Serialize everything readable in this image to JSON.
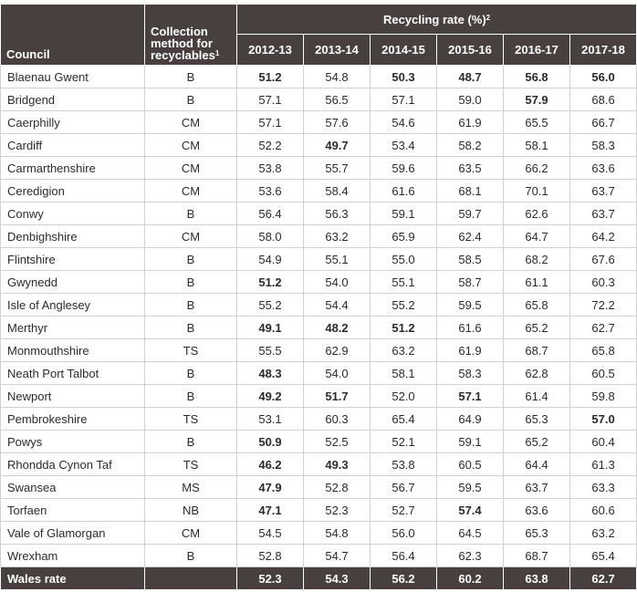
{
  "header": {
    "council": "Council",
    "method_lines": [
      "Collection",
      "method for",
      "recyclables"
    ],
    "method_footnote": "1",
    "rate_title": "Recycling rate (%)",
    "rate_footnote": "2",
    "years": [
      "2012-13",
      "2013-14",
      "2014-15",
      "2015-16",
      "2016-17",
      "2017-18"
    ]
  },
  "rows": [
    {
      "council": "Blaenau Gwent",
      "method": "B",
      "rates": [
        {
          "v": "51.2",
          "bold": true
        },
        {
          "v": "54.8",
          "bold": false
        },
        {
          "v": "50.3",
          "bold": true
        },
        {
          "v": "48.7",
          "bold": true
        },
        {
          "v": "56.8",
          "bold": true
        },
        {
          "v": "56.0",
          "bold": true
        }
      ]
    },
    {
      "council": "Bridgend",
      "method": "B",
      "rates": [
        {
          "v": "57.1",
          "bold": false
        },
        {
          "v": "56.5",
          "bold": false
        },
        {
          "v": "57.1",
          "bold": false
        },
        {
          "v": "59.0",
          "bold": false
        },
        {
          "v": "57.9",
          "bold": true
        },
        {
          "v": "68.6",
          "bold": false
        }
      ]
    },
    {
      "council": "Caerphilly",
      "method": "CM",
      "rates": [
        {
          "v": "57.1",
          "bold": false
        },
        {
          "v": "57.6",
          "bold": false
        },
        {
          "v": "54.6",
          "bold": false
        },
        {
          "v": "61.9",
          "bold": false
        },
        {
          "v": "65.5",
          "bold": false
        },
        {
          "v": "66.7",
          "bold": false
        }
      ]
    },
    {
      "council": "Cardiff",
      "method": "CM",
      "rates": [
        {
          "v": "52.2",
          "bold": false
        },
        {
          "v": "49.7",
          "bold": true
        },
        {
          "v": "53.4",
          "bold": false
        },
        {
          "v": "58.2",
          "bold": false
        },
        {
          "v": "58.1",
          "bold": false
        },
        {
          "v": "58.3",
          "bold": false
        }
      ]
    },
    {
      "council": "Carmarthenshire",
      "method": "CM",
      "rates": [
        {
          "v": "53.8",
          "bold": false
        },
        {
          "v": "55.7",
          "bold": false
        },
        {
          "v": "59.6",
          "bold": false
        },
        {
          "v": "63.5",
          "bold": false
        },
        {
          "v": "66.2",
          "bold": false
        },
        {
          "v": "63.6",
          "bold": false
        }
      ]
    },
    {
      "council": "Ceredigion",
      "method": "CM",
      "rates": [
        {
          "v": "53.6",
          "bold": false
        },
        {
          "v": "58.4",
          "bold": false
        },
        {
          "v": "61.6",
          "bold": false
        },
        {
          "v": "68.1",
          "bold": false
        },
        {
          "v": "70.1",
          "bold": false
        },
        {
          "v": "63.7",
          "bold": false
        }
      ]
    },
    {
      "council": "Conwy",
      "method": "B",
      "rates": [
        {
          "v": "56.4",
          "bold": false
        },
        {
          "v": "56.3",
          "bold": false
        },
        {
          "v": "59.1",
          "bold": false
        },
        {
          "v": "59.7",
          "bold": false
        },
        {
          "v": "62.6",
          "bold": false
        },
        {
          "v": "63.7",
          "bold": false
        }
      ]
    },
    {
      "council": "Denbighshire",
      "method": "CM",
      "rates": [
        {
          "v": "58.0",
          "bold": false
        },
        {
          "v": "63.2",
          "bold": false
        },
        {
          "v": "65.9",
          "bold": false
        },
        {
          "v": "62.4",
          "bold": false
        },
        {
          "v": "64.7",
          "bold": false
        },
        {
          "v": "64.2",
          "bold": false
        }
      ]
    },
    {
      "council": "Flintshire",
      "method": "B",
      "rates": [
        {
          "v": "54.9",
          "bold": false
        },
        {
          "v": "55.1",
          "bold": false
        },
        {
          "v": "55.0",
          "bold": false
        },
        {
          "v": "58.5",
          "bold": false
        },
        {
          "v": "68.2",
          "bold": false
        },
        {
          "v": "67.6",
          "bold": false
        }
      ]
    },
    {
      "council": "Gwynedd",
      "method": "B",
      "rates": [
        {
          "v": "51.2",
          "bold": true
        },
        {
          "v": "54.0",
          "bold": false
        },
        {
          "v": "55.1",
          "bold": false
        },
        {
          "v": "58.7",
          "bold": false
        },
        {
          "v": "61.1",
          "bold": false
        },
        {
          "v": "60.3",
          "bold": false
        }
      ]
    },
    {
      "council": "Isle of Anglesey",
      "method": "B",
      "rates": [
        {
          "v": "55.2",
          "bold": false
        },
        {
          "v": "54.4",
          "bold": false
        },
        {
          "v": "55.2",
          "bold": false
        },
        {
          "v": "59.5",
          "bold": false
        },
        {
          "v": "65.8",
          "bold": false
        },
        {
          "v": "72.2",
          "bold": false
        }
      ]
    },
    {
      "council": "Merthyr",
      "method": "B",
      "rates": [
        {
          "v": "49.1",
          "bold": true
        },
        {
          "v": "48.2",
          "bold": true
        },
        {
          "v": "51.2",
          "bold": true
        },
        {
          "v": "61.6",
          "bold": false
        },
        {
          "v": "65.2",
          "bold": false
        },
        {
          "v": "62.7",
          "bold": false
        }
      ]
    },
    {
      "council": "Monmouthshire",
      "method": "TS",
      "rates": [
        {
          "v": "55.5",
          "bold": false
        },
        {
          "v": "62.9",
          "bold": false
        },
        {
          "v": "63.2",
          "bold": false
        },
        {
          "v": "61.9",
          "bold": false
        },
        {
          "v": "68.7",
          "bold": false
        },
        {
          "v": "65.8",
          "bold": false
        }
      ]
    },
    {
      "council": "Neath Port Talbot",
      "method": "B",
      "rates": [
        {
          "v": "48.3",
          "bold": true
        },
        {
          "v": "54.0",
          "bold": false
        },
        {
          "v": "58.1",
          "bold": false
        },
        {
          "v": "58.3",
          "bold": false
        },
        {
          "v": "62.8",
          "bold": false
        },
        {
          "v": "60.5",
          "bold": false
        }
      ]
    },
    {
      "council": "Newport",
      "method": "B",
      "rates": [
        {
          "v": "49.2",
          "bold": true
        },
        {
          "v": "51.7",
          "bold": true
        },
        {
          "v": "52.0",
          "bold": false
        },
        {
          "v": "57.1",
          "bold": true
        },
        {
          "v": "61.4",
          "bold": false
        },
        {
          "v": "59.8",
          "bold": false
        }
      ]
    },
    {
      "council": "Pembrokeshire",
      "method": "TS",
      "rates": [
        {
          "v": "53.1",
          "bold": false
        },
        {
          "v": "60.3",
          "bold": false
        },
        {
          "v": "65.4",
          "bold": false
        },
        {
          "v": "64.9",
          "bold": false
        },
        {
          "v": "65.3",
          "bold": false
        },
        {
          "v": "57.0",
          "bold": true
        }
      ]
    },
    {
      "council": "Powys",
      "method": "B",
      "rates": [
        {
          "v": "50.9",
          "bold": true
        },
        {
          "v": "52.5",
          "bold": false
        },
        {
          "v": "52.1",
          "bold": false
        },
        {
          "v": "59.1",
          "bold": false
        },
        {
          "v": "65.2",
          "bold": false
        },
        {
          "v": "60.4",
          "bold": false
        }
      ]
    },
    {
      "council": "Rhondda Cynon Taf",
      "method": "TS",
      "rates": [
        {
          "v": "46.2",
          "bold": true
        },
        {
          "v": "49.3",
          "bold": true
        },
        {
          "v": "53.8",
          "bold": false
        },
        {
          "v": "60.5",
          "bold": false
        },
        {
          "v": "64.4",
          "bold": false
        },
        {
          "v": "61.3",
          "bold": false
        }
      ]
    },
    {
      "council": "Swansea",
      "method": "MS",
      "rates": [
        {
          "v": "47.9",
          "bold": true
        },
        {
          "v": "52.8",
          "bold": false
        },
        {
          "v": "56.7",
          "bold": false
        },
        {
          "v": "59.5",
          "bold": false
        },
        {
          "v": "63.7",
          "bold": false
        },
        {
          "v": "63.3",
          "bold": false
        }
      ]
    },
    {
      "council": "Torfaen",
      "method": "NB",
      "rates": [
        {
          "v": "47.1",
          "bold": true
        },
        {
          "v": "52.3",
          "bold": false
        },
        {
          "v": "52.7",
          "bold": false
        },
        {
          "v": "57.4",
          "bold": true
        },
        {
          "v": "63.6",
          "bold": false
        },
        {
          "v": "60.6",
          "bold": false
        }
      ]
    },
    {
      "council": "Vale of Glamorgan",
      "method": "CM",
      "rates": [
        {
          "v": "54.5",
          "bold": false
        },
        {
          "v": "54.8",
          "bold": false
        },
        {
          "v": "56.0",
          "bold": false
        },
        {
          "v": "64.5",
          "bold": false
        },
        {
          "v": "65.3",
          "bold": false
        },
        {
          "v": "63.2",
          "bold": false
        }
      ]
    },
    {
      "council": "Wrexham",
      "method": "B",
      "rates": [
        {
          "v": "52.8",
          "bold": false
        },
        {
          "v": "54.7",
          "bold": false
        },
        {
          "v": "56.4",
          "bold": false
        },
        {
          "v": "62.3",
          "bold": false
        },
        {
          "v": "68.7",
          "bold": false
        },
        {
          "v": "65.4",
          "bold": false
        }
      ]
    }
  ],
  "total": {
    "label": "Wales rate",
    "rates": [
      "52.3",
      "54.3",
      "56.2",
      "60.2",
      "63.8",
      "62.7"
    ]
  },
  "colors": {
    "header_bg": "#47403e",
    "header_text": "#ffffff",
    "grid_line": "#d2d2d2",
    "body_text": "#2b2b2b"
  }
}
